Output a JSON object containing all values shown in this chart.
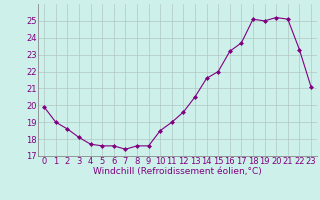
{
  "x": [
    0,
    1,
    2,
    3,
    4,
    5,
    6,
    7,
    8,
    9,
    10,
    11,
    12,
    13,
    14,
    15,
    16,
    17,
    18,
    19,
    20,
    21,
    22,
    23
  ],
  "y": [
    19.9,
    19.0,
    18.6,
    18.1,
    17.7,
    17.6,
    17.6,
    17.4,
    17.6,
    17.6,
    18.5,
    19.0,
    19.6,
    20.5,
    21.6,
    22.0,
    23.2,
    23.7,
    25.1,
    25.0,
    25.2,
    25.1,
    23.3,
    21.1
  ],
  "line_color": "#800080",
  "marker": "D",
  "markersize": 2.0,
  "linewidth": 0.8,
  "bg_color": "#cef0eb",
  "grid_color": "#b0c8c4",
  "xlabel": "Windchill (Refroidissement éolien,°C)",
  "xlabel_fontsize": 6.5,
  "tick_color": "#800080",
  "tick_fontsize": 6,
  "ylim": [
    17,
    26
  ],
  "xlim": [
    -0.5,
    23.5
  ],
  "yticks": [
    17,
    18,
    19,
    20,
    21,
    22,
    23,
    24,
    25
  ],
  "xticks": [
    0,
    1,
    2,
    3,
    4,
    5,
    6,
    7,
    8,
    9,
    10,
    11,
    12,
    13,
    14,
    15,
    16,
    17,
    18,
    19,
    20,
    21,
    22,
    23
  ],
  "xtick_labels": [
    "0",
    "1",
    "2",
    "3",
    "4",
    "5",
    "6",
    "7",
    "8",
    "9",
    "10",
    "11",
    "12",
    "13",
    "14",
    "15",
    "16",
    "17",
    "18",
    "19",
    "20",
    "21",
    "22",
    "23"
  ]
}
